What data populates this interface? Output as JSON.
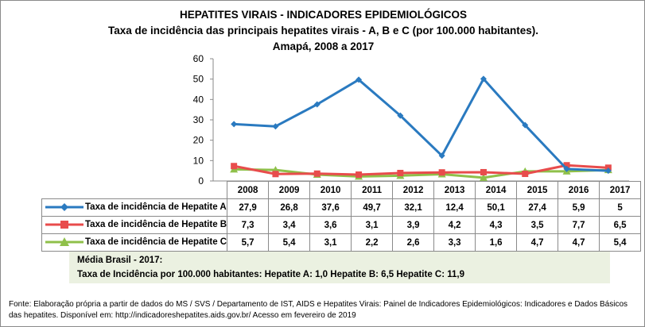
{
  "titles": [
    "HEPATITES VIRAIS - INDICADORES EPIDEMIOLÓGICOS",
    "Taxa de incidência das principais hepatites virais - A, B e C (por 100.000 habitantes).",
    "Amapá, 2008 a 2017"
  ],
  "chart_data": {
    "type": "line",
    "title": "HEPATITES VIRAIS - INDICADORES EPIDEMIOLÓGICOS",
    "categories": [
      "2008",
      "2009",
      "2010",
      "2011",
      "2012",
      "2013",
      "2014",
      "2015",
      "2016",
      "2017"
    ],
    "ylim": [
      0,
      60
    ],
    "yticks": [
      "0",
      "10",
      "20",
      "30",
      "40",
      "50",
      "60"
    ],
    "grid": false,
    "legend": "table-bottom",
    "series": [
      {
        "name": "Taxa de incidência de Hepatite A",
        "values": [
          "27,9",
          "26,8",
          "37,6",
          "49,7",
          "32,1",
          "12,4",
          "50,1",
          "27,4",
          "5,9",
          "5"
        ],
        "color": "#2a7ac0",
        "marker": "diamond"
      },
      {
        "name": "Taxa de incidência de Hepatite B",
        "values": [
          "7,3",
          "3,4",
          "3,6",
          "3,1",
          "3,9",
          "4,2",
          "4,3",
          "3,5",
          "7,7",
          "6,5"
        ],
        "color": "#e84c4c",
        "marker": "square"
      },
      {
        "name": "Taxa de incidência de Hepatite C",
        "values": [
          "5,7",
          "5,4",
          "3,1",
          "2,2",
          "2,6",
          "3,3",
          "1,6",
          "4,7",
          "4,7",
          "5,4"
        ],
        "color": "#8fc04a",
        "marker": "triangle"
      }
    ]
  },
  "average": {
    "line1": "Média Brasil  - 2017:",
    "line2": "Taxa  de Incidência  por 100.000 habitantes:  Hepatite A: 1,0        Hepatite B: 6,5        Hepatite C: 11,9"
  },
  "footer": "Fonte: Elaboração própria a partir de dados do MS / SVS / Departamento de IST, AIDS e Hepatites Virais:  Painel de Indicadores Epidemiológicos: Indicadores e Dados Básicos das hepatites.  Disponível em: http://indicadoreshepatites.aids.gov.br/      Acesso em fevereiro de 2019"
}
